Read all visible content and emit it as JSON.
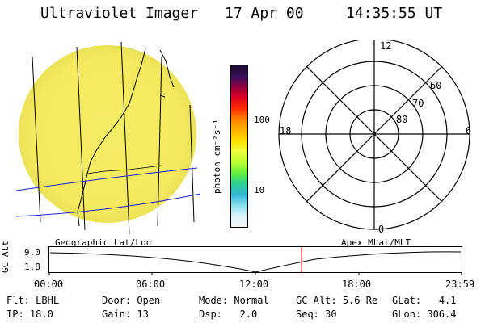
{
  "header": {
    "title": "Ultraviolet Imager",
    "date": "17 Apr 00",
    "time": "14:35:55 UT"
  },
  "colorbar": {
    "unit_label": "photon cm⁻²s⁻¹",
    "ticks": [
      "100",
      "10"
    ],
    "colors": [
      "#1a0a2a",
      "#3a1060",
      "#8a0040",
      "#e00020",
      "#ff3000",
      "#ff8000",
      "#ffb000",
      "#ffe000",
      "#f0ff40",
      "#b8ff30",
      "#60f040",
      "#30d090",
      "#30b8d8",
      "#90e0f0",
      "#d8f4fa",
      "#f4f4f4"
    ]
  },
  "polar_plot": {
    "mlt_labels": {
      "top": "12",
      "left": "18",
      "right": "6",
      "bottom": "0"
    },
    "mlat_labels": [
      "60",
      "70",
      "80"
    ]
  },
  "altitude_panel": {
    "left_label": "Geographic Lat/Lon",
    "right_label": "Apex MLat/MLT",
    "y_axis_label": "GC Alt",
    "y_ticks": [
      "9.0",
      "1.8"
    ],
    "x_ticks": [
      "00:00",
      "06:00",
      "12:00",
      "18:00",
      "23:59"
    ],
    "current_time_fraction": 0.612
  },
  "info": {
    "row1": [
      {
        "k": "Flt:",
        "v": "LBHL"
      },
      {
        "k": "Door:",
        "v": "Open"
      },
      {
        "k": "Mode:",
        "v": "Normal"
      },
      {
        "k": "GC Alt:",
        "v": "5.6 Re"
      },
      {
        "k": "GLat:",
        "v": "4.1"
      }
    ],
    "row2": [
      {
        "k": "IP:",
        "v": "18.0"
      },
      {
        "k": "Gain:",
        "v": "13"
      },
      {
        "k": "Dsp:",
        "v": "2.0"
      },
      {
        "k": "Seq:",
        "v": "30"
      },
      {
        "k": "GLon:",
        "v": "306.4"
      }
    ]
  }
}
